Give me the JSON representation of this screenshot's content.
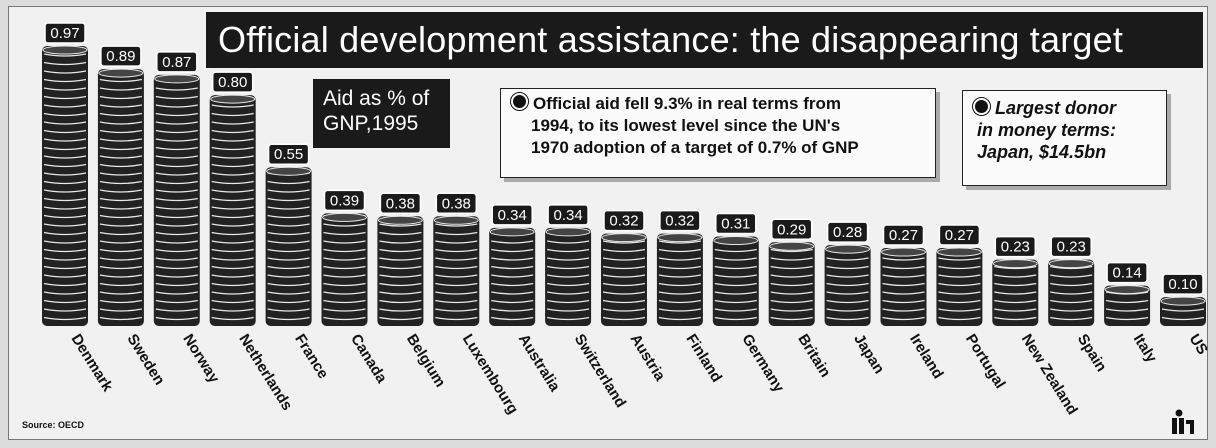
{
  "title": "Official development assistance: the disappearing target",
  "subtitle": {
    "line1": "Aid as % of",
    "line2": "GNP,1995"
  },
  "note": {
    "line1": "Official aid fell 9.3% in real terms from",
    "line2": "1994, to its lowest level since the UN's",
    "line3": "1970 adoption of a target of 0.7% of GNP"
  },
  "donor": {
    "line1": "Largest donor",
    "line2": "in money terms:",
    "line3": "Japan, $14.5bn"
  },
  "source": "Source: OECD",
  "colors": {
    "coin": "#222222",
    "coin_edge": "#e8e8e8",
    "label_bg": "#1a1a1a",
    "label_text": "#ffffff",
    "title_bg": "#1a1a1a"
  },
  "logo_icon": "person-logo-icon",
  "chart_data": {
    "type": "bar",
    "title": "Official development assistance: the disappearing target",
    "subtitle": "Aid as % of GNP,1995",
    "categories": [
      "Denmark",
      "Sweden",
      "Norway",
      "Netherlands",
      "France",
      "Canada",
      "Belgium",
      "Luxembourg",
      "Australia",
      "Switzerland",
      "Austria",
      "Finland",
      "Germany",
      "Britain",
      "Japan",
      "Ireland",
      "Portugal",
      "New Zealand",
      "Spain",
      "Italy",
      "US"
    ],
    "value_labels": [
      "0.97",
      "0.89",
      "0.87",
      "0.80",
      "0.55",
      "0.39",
      "0.38",
      "0.38",
      "0.34",
      "0.34",
      "0.32",
      "0.32",
      "0.31",
      "0.29",
      "0.28",
      "0.27",
      "0.27",
      "0.23",
      "0.23",
      "0.14",
      "0.10"
    ],
    "values": [
      0.97,
      0.89,
      0.87,
      0.8,
      0.55,
      0.39,
      0.38,
      0.38,
      0.34,
      0.34,
      0.32,
      0.32,
      0.31,
      0.29,
      0.28,
      0.27,
      0.27,
      0.23,
      0.23,
      0.14,
      0.1
    ],
    "ylim": [
      0,
      0.97
    ],
    "grid": false,
    "legend": "none"
  }
}
